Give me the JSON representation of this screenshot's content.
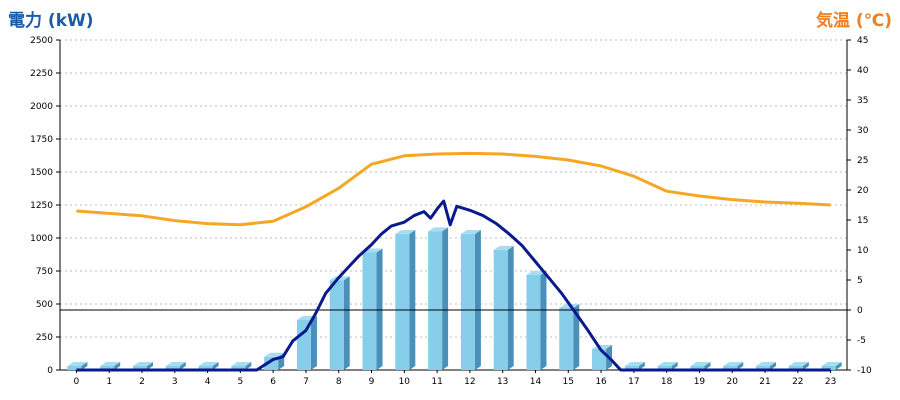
{
  "left_axis_title": "電力 (kW)",
  "right_axis_title": "気温 (℃)",
  "chart_data": {
    "type": "bar",
    "categories": [
      "0",
      "1",
      "2",
      "3",
      "4",
      "5",
      "6",
      "7",
      "8",
      "9",
      "10",
      "11",
      "12",
      "13",
      "14",
      "15",
      "16",
      "17",
      "18",
      "19",
      "20",
      "21",
      "22",
      "23"
    ],
    "ylabel_left": "電力 (kW)",
    "ylabel_right": "気温 (℃)",
    "ylim_left": [
      0,
      2500
    ],
    "ylim_right": [
      -10,
      45
    ],
    "yticks_left": [
      0,
      250,
      500,
      750,
      1000,
      1250,
      1500,
      1750,
      2000,
      2250,
      2500
    ],
    "yticks_right": [
      -10,
      -5,
      0,
      5,
      10,
      15,
      20,
      25,
      30,
      35,
      40,
      45
    ],
    "grid": true,
    "series": [
      {
        "type": "bar",
        "axis": "left",
        "values": [
          0,
          0,
          0,
          0,
          0,
          0,
          100,
          380,
          680,
          890,
          1030,
          1050,
          1030,
          910,
          720,
          470,
          160,
          0,
          0,
          0,
          0,
          0,
          0,
          0
        ],
        "color": "#87ceeb"
      },
      {
        "type": "line",
        "axis": "left",
        "color": "#0a1a8c",
        "points": [
          [
            0,
            0
          ],
          [
            5.5,
            0
          ],
          [
            6,
            80
          ],
          [
            6.3,
            100
          ],
          [
            6.6,
            220
          ],
          [
            7,
            300
          ],
          [
            7.3,
            430
          ],
          [
            7.6,
            580
          ],
          [
            8,
            700
          ],
          [
            8.3,
            780
          ],
          [
            8.6,
            860
          ],
          [
            9,
            950
          ],
          [
            9.3,
            1030
          ],
          [
            9.6,
            1090
          ],
          [
            10,
            1120
          ],
          [
            10.3,
            1170
          ],
          [
            10.6,
            1200
          ],
          [
            10.8,
            1150
          ],
          [
            11,
            1220
          ],
          [
            11.2,
            1280
          ],
          [
            11.4,
            1100
          ],
          [
            11.6,
            1240
          ],
          [
            12,
            1210
          ],
          [
            12.4,
            1170
          ],
          [
            12.8,
            1110
          ],
          [
            13.2,
            1030
          ],
          [
            13.6,
            940
          ],
          [
            14,
            820
          ],
          [
            14.4,
            700
          ],
          [
            14.8,
            580
          ],
          [
            15.2,
            440
          ],
          [
            15.6,
            300
          ],
          [
            16,
            150
          ],
          [
            16.3,
            80
          ],
          [
            16.6,
            0
          ],
          [
            23,
            0
          ]
        ]
      },
      {
        "type": "line",
        "axis": "right",
        "color": "#f5a623",
        "values": [
          16.5,
          16.1,
          15.7,
          14.9,
          14.4,
          14.2,
          14.8,
          17.2,
          20.3,
          24.3,
          25.7,
          26.0,
          26.1,
          26.0,
          25.6,
          25.0,
          24.0,
          22.3,
          19.8,
          19.0,
          18.4,
          18.0,
          17.8,
          17.5
        ]
      }
    ],
    "reference_line": {
      "axis": "right",
      "value": 0,
      "color": "#000000"
    }
  }
}
